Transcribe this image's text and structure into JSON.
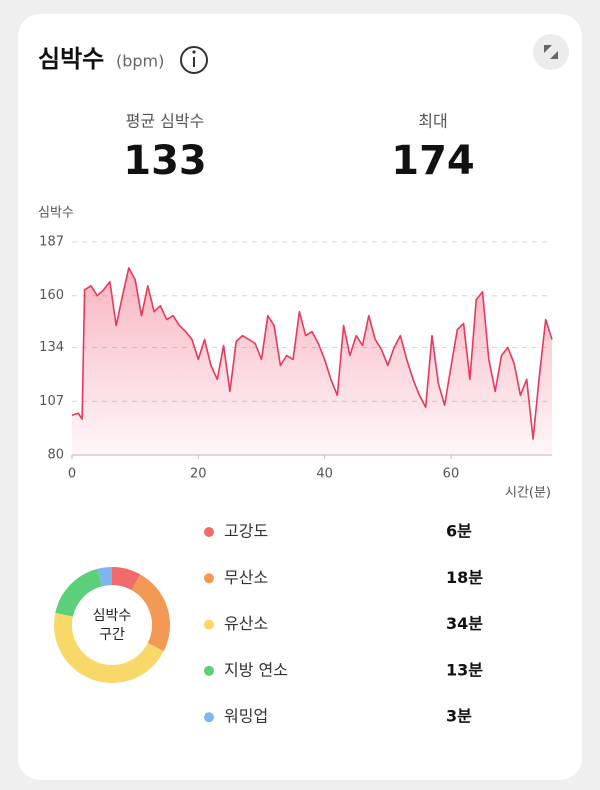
{
  "header": {
    "title": "심박수",
    "unit": "(bpm)"
  },
  "stats": [
    {
      "label": "평균 심박수",
      "value": 133
    },
    {
      "label": "최대",
      "value": 174
    }
  ],
  "chart_data": [
    {
      "type": "area",
      "ylabel": "심박수",
      "xlabel": "시간(분)",
      "x": [
        0,
        1,
        1.6,
        2,
        3,
        4,
        5,
        6,
        7,
        8,
        9,
        10,
        11,
        12,
        13,
        14,
        15,
        16,
        17,
        18,
        19,
        20,
        21,
        22,
        23,
        24,
        25,
        26,
        27,
        28,
        29,
        30,
        31,
        32,
        33,
        34,
        35,
        36,
        37,
        38,
        39,
        40,
        41,
        42,
        43,
        44,
        45,
        46,
        47,
        48,
        49,
        50,
        51,
        52,
        53,
        54,
        55,
        56,
        57,
        58,
        59,
        60,
        61,
        62,
        63,
        64,
        65,
        66,
        67,
        68,
        69,
        70,
        71,
        72,
        73,
        74,
        75,
        76
      ],
      "series": [
        {
          "color": "#e8395a",
          "values": [
            100,
            101,
            98,
            163,
            165,
            160,
            163,
            167,
            145,
            160,
            174,
            168,
            150,
            165,
            152,
            155,
            148,
            150,
            145,
            142,
            138,
            128,
            138,
            125,
            118,
            135,
            112,
            137,
            140,
            138,
            136,
            128,
            150,
            145,
            125,
            130,
            128,
            152,
            140,
            142,
            136,
            128,
            118,
            110,
            145,
            130,
            140,
            135,
            150,
            138,
            133,
            125,
            134,
            140,
            128,
            118,
            110,
            104,
            140,
            116,
            105,
            124,
            143,
            146,
            118,
            158,
            162,
            128,
            112,
            130,
            134,
            126,
            110,
            118,
            88,
            120,
            148,
            138
          ]
        }
      ],
      "xlim": [
        0,
        76
      ],
      "ylim": [
        80,
        187
      ],
      "xticks": [
        0,
        20,
        40,
        60
      ],
      "yticks": [
        80,
        107,
        134,
        160,
        187
      ],
      "grid": true
    },
    {
      "type": "donut",
      "center_label": [
        "심박수",
        "구간"
      ],
      "categories": [
        "고강도",
        "무산소",
        "유산소",
        "지방 연소",
        "워밍업"
      ],
      "values": [
        6,
        18,
        34,
        13,
        3
      ],
      "value_labels": [
        "6분",
        "18분",
        "34분",
        "13분",
        "3분"
      ],
      "colors": [
        "#f26b6b",
        "#f29a55",
        "#f7d869",
        "#5ccf7a",
        "#7cb5ef"
      ]
    }
  ]
}
